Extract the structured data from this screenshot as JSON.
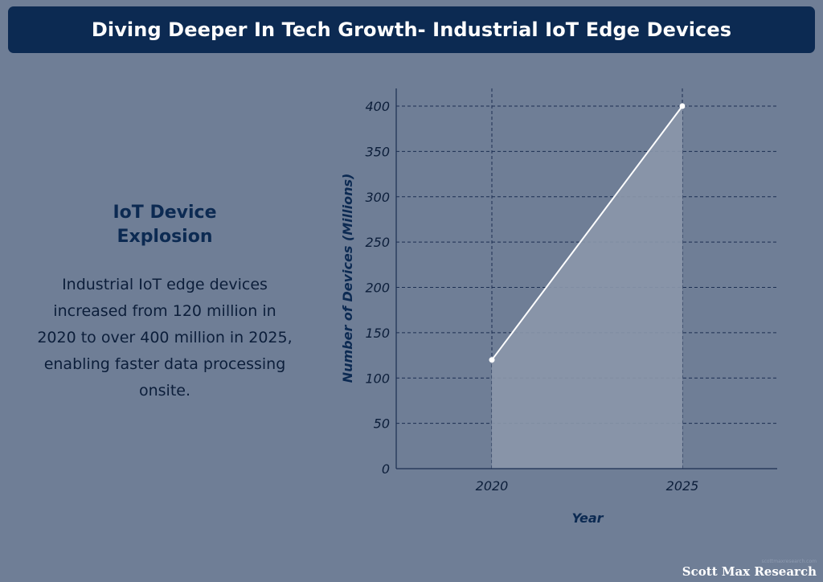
{
  "header": {
    "title": "Diving Deeper In Tech Growth- Industrial IoT Edge Devices"
  },
  "side_panel": {
    "heading": "IoT Device Explosion",
    "body": "Industrial IoT edge devices increased from 120 million in 2020 to over 400 million in 2025, enabling faster data processing onsite."
  },
  "chart_data": {
    "type": "area",
    "title": "",
    "x": [
      "2020",
      "2025"
    ],
    "series": [
      {
        "name": "Industrial IoT edge devices",
        "values": [
          120,
          400
        ]
      }
    ],
    "xlabel": "Year",
    "ylabel": "Number of Devices (Millions)",
    "ylim": [
      0,
      400
    ],
    "yticks": [
      0,
      50,
      100,
      150,
      200,
      250,
      300,
      350,
      400
    ],
    "grid": true,
    "colors": {
      "line": "#ffffff",
      "fill": "#8b97aa",
      "grid": "#1c2f52",
      "axis": "#1c2f52"
    }
  },
  "footer": {
    "small_text": "scottmaxresearch.com",
    "brand": "Scott Max Research"
  }
}
